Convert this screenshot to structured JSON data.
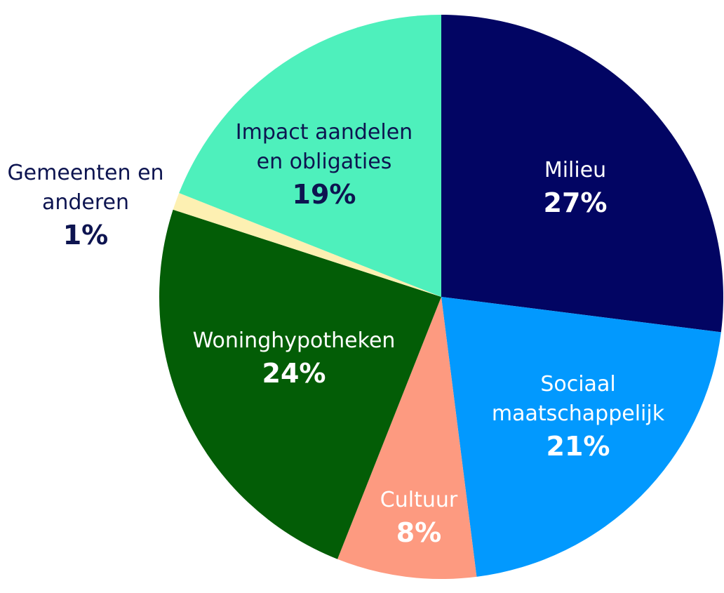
{
  "chart_data": {
    "type": "pie",
    "start_angle_deg": 0,
    "direction": "clockwise",
    "slices": [
      {
        "label_lines": [
          "Milieu"
        ],
        "value": 27,
        "value_label": "27%",
        "color": "#020563",
        "text_color": "#ffffff"
      },
      {
        "label_lines": [
          "Sociaal",
          "maatschappelijk"
        ],
        "value": 21,
        "value_label": "21%",
        "color": "#0299fe",
        "text_color": "#ffffff"
      },
      {
        "label_lines": [
          "Cultuur"
        ],
        "value": 8,
        "value_label": "8%",
        "color": "#fd9a80",
        "text_color": "#ffffff"
      },
      {
        "label_lines": [
          "Woninghypotheken"
        ],
        "value": 24,
        "value_label": "24%",
        "color": "#035d06",
        "text_color": "#ffffff"
      },
      {
        "label_lines": [
          "Gemeenten en",
          "anderen"
        ],
        "value": 1,
        "value_label": "1%",
        "color": "#fdf0b2",
        "text_color": "#0d1450"
      },
      {
        "label_lines": [
          "Impact aandelen",
          "en obligaties"
        ],
        "value": 19,
        "value_label": "19%",
        "color": "#4ef0bc",
        "text_color": "#0d1450"
      }
    ]
  }
}
